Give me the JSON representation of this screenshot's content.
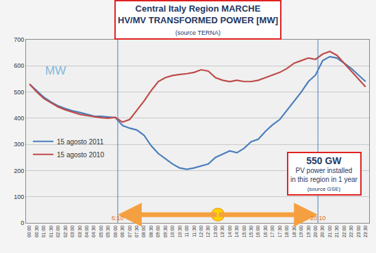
{
  "chart_data": {
    "type": "line",
    "title": "Central Italy Region MARCHE\nHV/MV TRANSFORMED POWER [MW]",
    "subtitle": "(source TERNA)",
    "annotations": [
      "MW",
      "550 GW",
      "PV power installed\nin this region in 1 year",
      "(source GSE)"
    ],
    "sunlight": [
      "6:10",
      "20:10"
    ],
    "x": [
      0,
      0.5,
      1,
      1.5,
      2,
      2.5,
      3,
      3.5,
      4,
      4.5,
      5,
      5.5,
      6,
      6.5,
      7,
      7.5,
      8,
      8.5,
      9,
      9.5,
      10,
      10.5,
      11,
      11.5,
      12,
      12.5,
      13,
      13.5,
      14,
      14.5,
      15,
      15.5,
      16,
      16.5,
      17,
      17.5,
      18,
      18.5,
      19,
      19.5,
      20,
      20.5,
      21,
      21.5,
      22,
      22.5,
      23,
      23.5
    ],
    "series": [
      {
        "name": "15 agosto 2011",
        "color": "#4a7ebb",
        "values": [
          530,
          505,
          480,
          462,
          447,
          437,
          428,
          422,
          415,
          408,
          407,
          405,
          402,
          372,
          362,
          355,
          335,
          295,
          265,
          245,
          225,
          210,
          205,
          210,
          218,
          225,
          250,
          262,
          275,
          268,
          285,
          310,
          320,
          350,
          375,
          395,
          430,
          465,
          500,
          540,
          565,
          620,
          635,
          630,
          610,
          590,
          565,
          540
        ]
      },
      {
        "name": "15 agosto 2010",
        "color": "#be4b48",
        "values": [
          530,
          500,
          475,
          458,
          443,
          432,
          423,
          415,
          410,
          405,
          402,
          400,
          403,
          385,
          395,
          430,
          465,
          505,
          540,
          555,
          563,
          567,
          570,
          575,
          585,
          580,
          555,
          545,
          540,
          545,
          540,
          540,
          545,
          555,
          565,
          575,
          590,
          610,
          620,
          630,
          625,
          645,
          655,
          640,
          610,
          580,
          550,
          520
        ]
      }
    ],
    "xlim": [
      -0.25,
      23.75
    ],
    "xticks": [
      {
        "value": 0,
        "label": "00:00"
      },
      {
        "value": 0.5,
        "label": "00:30"
      },
      {
        "value": 1,
        "label": "01:00"
      },
      {
        "value": 1.5,
        "label": "01:30"
      },
      {
        "value": 2,
        "label": "02:00"
      },
      {
        "value": 2.5,
        "label": "02:30"
      },
      {
        "value": 3,
        "label": "03:00"
      },
      {
        "value": 3.5,
        "label": "03:30"
      },
      {
        "value": 4,
        "label": "04:00"
      },
      {
        "value": 4.5,
        "label": "04:30"
      },
      {
        "value": 5,
        "label": "05:00"
      },
      {
        "value": 5.5,
        "label": "05:30"
      },
      {
        "value": 6,
        "label": "06:00"
      },
      {
        "value": 6.5,
        "label": "06:30"
      },
      {
        "value": 7,
        "label": "07:00"
      },
      {
        "value": 7.5,
        "label": "07:30"
      },
      {
        "value": 8,
        "label": "08:00"
      },
      {
        "value": 8.5,
        "label": "08:30"
      },
      {
        "value": 9,
        "label": "09:00"
      },
      {
        "value": 9.5,
        "label": "09:30"
      },
      {
        "value": 10,
        "label": "10:00"
      },
      {
        "value": 10.5,
        "label": "10:30"
      },
      {
        "value": 11,
        "label": "11:00"
      },
      {
        "value": 11.5,
        "label": "11:30"
      },
      {
        "value": 12,
        "label": "12:00"
      },
      {
        "value": 12.5,
        "label": "12:30"
      },
      {
        "value": 13,
        "label": "13:00"
      },
      {
        "value": 13.5,
        "label": "13:30"
      },
      {
        "value": 14,
        "label": "14:00"
      },
      {
        "value": 14.5,
        "label": "14:30"
      },
      {
        "value": 15,
        "label": "15:00"
      },
      {
        "value": 15.5,
        "label": "15:30"
      },
      {
        "value": 16,
        "label": "16:00"
      },
      {
        "value": 16.5,
        "label": "16:30"
      },
      {
        "value": 17,
        "label": "17:00"
      },
      {
        "value": 17.5,
        "label": "17:30"
      },
      {
        "value": 18,
        "label": "18:00"
      },
      {
        "value": 18.5,
        "label": "18:30"
      },
      {
        "value": 19,
        "label": "19:00"
      },
      {
        "value": 19.5,
        "label": "19:30"
      },
      {
        "value": 20,
        "label": "20:00"
      },
      {
        "value": 20.5,
        "label": "20:30"
      },
      {
        "value": 21,
        "label": "21:00"
      },
      {
        "value": 21.5,
        "label": "21:30"
      },
      {
        "value": 22,
        "label": "22:00"
      },
      {
        "value": 22.5,
        "label": "22:30"
      },
      {
        "value": 23,
        "label": "23:00"
      },
      {
        "value": 23.5,
        "label": "23:30"
      }
    ],
    "ylim": [
      0,
      700
    ],
    "yticks": [
      0,
      100,
      200,
      300,
      400,
      500,
      600,
      700
    ],
    "grid": true,
    "legend": "left"
  }
}
